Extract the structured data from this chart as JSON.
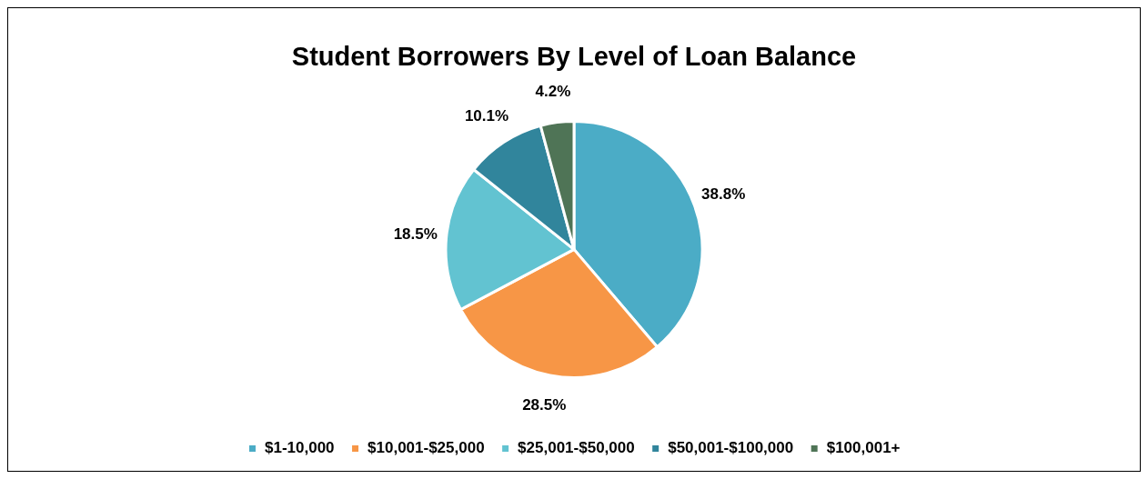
{
  "chart_data": {
    "type": "pie",
    "title": "Student Borrowers By Level of Loan Balance",
    "categories": [
      "$1-10,000",
      "$10,001-$25,000",
      "$25,001-$50,000",
      "$50,001-$100,000",
      "$100,001+"
    ],
    "values": [
      38.8,
      28.5,
      18.5,
      10.1,
      4.2
    ],
    "colors": [
      "#4bacc6",
      "#f79646",
      "#62c3d1",
      "#31859c",
      "#4f7456"
    ],
    "value_labels": [
      "38.8%",
      "28.5%",
      "18.5%",
      "10.1%",
      "4.2%"
    ],
    "legend": "bottom"
  }
}
